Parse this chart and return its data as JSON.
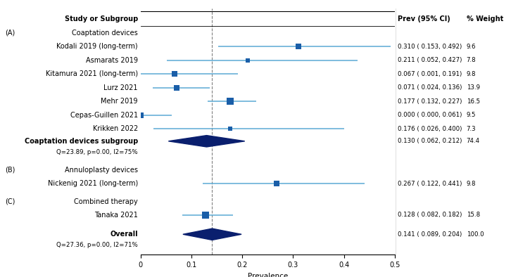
{
  "studies": [
    {
      "label": "Kodali 2019 (long-term)",
      "prev": 0.31,
      "ci_low": 0.153,
      "ci_high": 0.492,
      "weight": 9.6,
      "group": "A"
    },
    {
      "label": "Asmarats 2019",
      "prev": 0.211,
      "ci_low": 0.052,
      "ci_high": 0.427,
      "weight": 7.8,
      "group": "A"
    },
    {
      "label": "Kitamura 2021 (long-term)",
      "prev": 0.067,
      "ci_low": 0.001,
      "ci_high": 0.191,
      "weight": 9.8,
      "group": "A"
    },
    {
      "label": "Lurz 2021",
      "prev": 0.071,
      "ci_low": 0.024,
      "ci_high": 0.136,
      "weight": 13.9,
      "group": "A"
    },
    {
      "label": "Mehr 2019",
      "prev": 0.177,
      "ci_low": 0.132,
      "ci_high": 0.227,
      "weight": 16.5,
      "group": "A"
    },
    {
      "label": "Cepas-Guillen 2021",
      "prev": 0.0,
      "ci_low": 0.0,
      "ci_high": 0.061,
      "weight": 9.5,
      "group": "A"
    },
    {
      "label": "Krikken 2022",
      "prev": 0.176,
      "ci_low": 0.026,
      "ci_high": 0.4,
      "weight": 7.3,
      "group": "A"
    },
    {
      "label": "Nickenig 2021 (long-term)",
      "prev": 0.267,
      "ci_low": 0.122,
      "ci_high": 0.441,
      "weight": 9.8,
      "group": "B"
    },
    {
      "label": "Tanaka 2021",
      "prev": 0.128,
      "ci_low": 0.082,
      "ci_high": 0.182,
      "weight": 15.8,
      "group": "C"
    }
  ],
  "subgroups": [
    {
      "label": "Coaptation devices subgroup",
      "stat_label": "Q=23.89, p=0.00, I2=75%",
      "prev": 0.13,
      "ci_low": 0.062,
      "ci_high": 0.212,
      "weight": 74.4
    },
    {
      "label": "Overall",
      "stat_label": "Q=27.36, p=0.00, I2=71%",
      "prev": 0.141,
      "ci_low": 0.089,
      "ci_high": 0.204,
      "weight": 100.0
    }
  ],
  "xlim": [
    0,
    0.5
  ],
  "xticks": [
    0,
    0.1,
    0.2,
    0.3,
    0.4,
    0.5
  ],
  "xlabel": "Prevalence",
  "ref_line_x": 0.141,
  "study_color": "#1a5ea8",
  "ci_color": "#5baad4",
  "diamond_color": "#0a1f6e",
  "bg_color": "#FFFFFF",
  "font_size_label": 7.0,
  "font_size_small": 6.2
}
